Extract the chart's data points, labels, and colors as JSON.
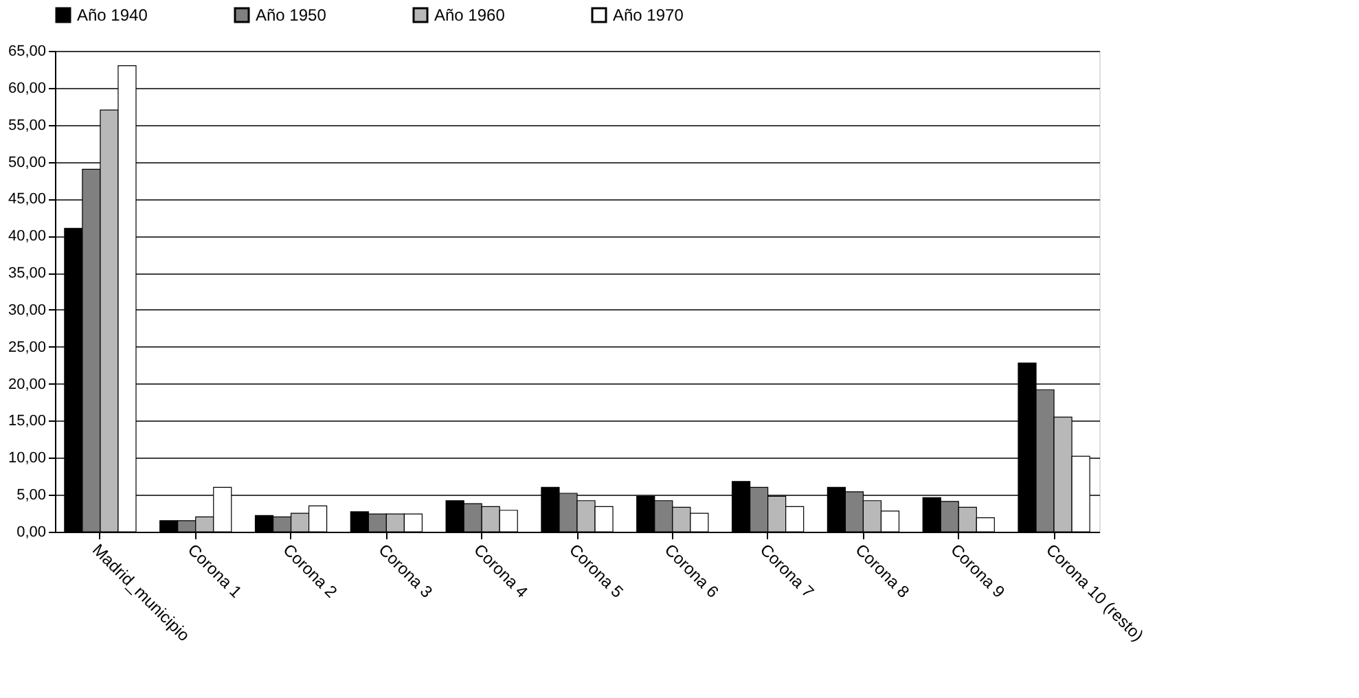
{
  "chart_data": {
    "type": "bar",
    "categories": [
      "Madrid_municipio",
      "Corona 1",
      "Corona 2",
      "Corona 3",
      "Corona 4",
      "Corona 5",
      "Corona 6",
      "Corona 7",
      "Corona 8",
      "Corona 9",
      "Corona 10 (resto)"
    ],
    "series": [
      {
        "name": "Año 1940",
        "color": "#000000",
        "values": [
          41,
          1.5,
          2.2,
          2.7,
          4.2,
          6,
          4.8,
          6.8,
          6,
          4.6,
          22.8
        ]
      },
      {
        "name": "Año 1950",
        "color": "#808080",
        "values": [
          49,
          1.5,
          2,
          2.4,
          3.8,
          5.2,
          4.2,
          6,
          5.4,
          4.1,
          19.2
        ]
      },
      {
        "name": "Año 1960",
        "color": "#b8b8b8",
        "values": [
          57,
          2,
          2.5,
          2.4,
          3.4,
          4.2,
          3.3,
          4.8,
          4.2,
          3.3,
          15.5
        ]
      },
      {
        "name": "Año 1970",
        "color": "#ffffff",
        "values": [
          63,
          6,
          3.5,
          2.4,
          2.9,
          3.4,
          2.5,
          3.4,
          2.8,
          1.9,
          10.2
        ]
      }
    ],
    "ylim": [
      0,
      65
    ],
    "yticks": [
      {
        "value": 0,
        "label": "0,00"
      },
      {
        "value": 5,
        "label": "5,00"
      },
      {
        "value": 10,
        "label": "10,00"
      },
      {
        "value": 15,
        "label": "15,00"
      },
      {
        "value": 20,
        "label": "20,00"
      },
      {
        "value": 25,
        "label": "25,00"
      },
      {
        "value": 30,
        "label": "30,00"
      },
      {
        "value": 35,
        "label": "35,00"
      },
      {
        "value": 40,
        "label": "40,00"
      },
      {
        "value": 45,
        "label": "45,00"
      },
      {
        "value": 50,
        "label": "50,00"
      },
      {
        "value": 55,
        "label": "55,00"
      },
      {
        "value": 60,
        "label": "60,00"
      },
      {
        "value": 65,
        "label": "65,00"
      }
    ],
    "grid": "y",
    "legend": "top"
  }
}
